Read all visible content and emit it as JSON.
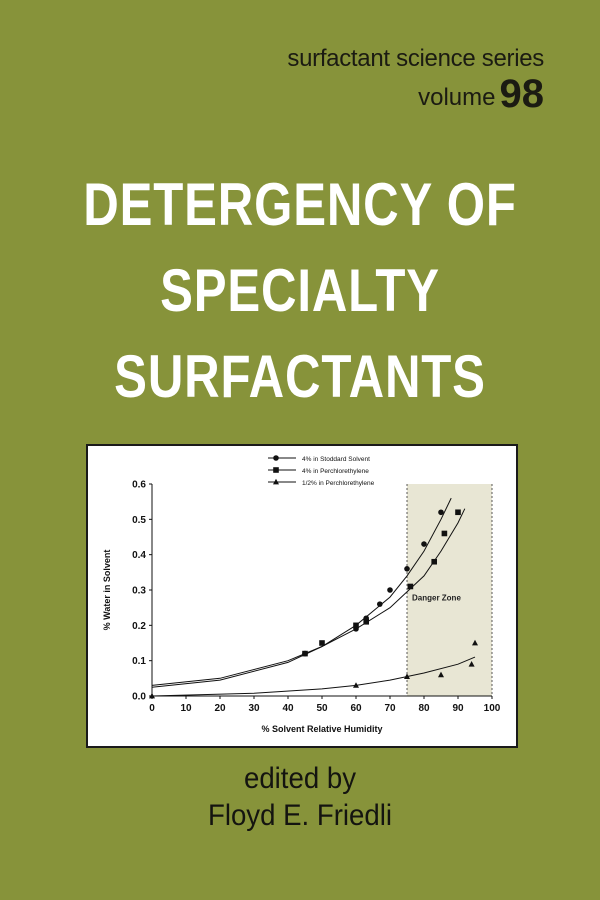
{
  "series": {
    "name": "surfactant science series",
    "volume_label": "volume",
    "volume_number": "98"
  },
  "title_lines": [
    "DETERGENCY OF",
    "SPECIALTY",
    "SURFACTANTS"
  ],
  "credits": {
    "edited_by": "edited by",
    "editor": "Floyd E. Friedli"
  },
  "colors": {
    "background": "#87933a",
    "title": "#ffffff",
    "danger_zone": "#e8e6d4"
  },
  "chart_data": {
    "type": "scatter",
    "xlabel": "% Solvent Relative Humidity",
    "ylabel": "% Water in Solvent",
    "xlim": [
      0,
      100
    ],
    "ylim": [
      0,
      0.6
    ],
    "x_ticks": [
      "0",
      "10",
      "20",
      "30",
      "40",
      "50",
      "60",
      "70",
      "80",
      "90",
      "100"
    ],
    "y_ticks": [
      "0.0",
      "0.1",
      "0.2",
      "0.3",
      "0.4",
      "0.5",
      "0.6"
    ],
    "annotation": {
      "text": "Danger Zone",
      "x_from": 75,
      "x_to": 100
    },
    "legend_position": "top",
    "series": [
      {
        "name": "4% in Stoddard Solvent",
        "marker": "circle",
        "points": [
          [
            45,
            0.12
          ],
          [
            60,
            0.19
          ],
          [
            63,
            0.22
          ],
          [
            67,
            0.26
          ],
          [
            70,
            0.3
          ],
          [
            75,
            0.36
          ],
          [
            80,
            0.43
          ],
          [
            85,
            0.52
          ]
        ],
        "fit": [
          [
            0,
            0.025
          ],
          [
            20,
            0.045
          ],
          [
            40,
            0.095
          ],
          [
            50,
            0.14
          ],
          [
            60,
            0.2
          ],
          [
            70,
            0.28
          ],
          [
            75,
            0.34
          ],
          [
            80,
            0.41
          ],
          [
            85,
            0.5
          ],
          [
            88,
            0.56
          ]
        ]
      },
      {
        "name": "4% in Perchlorethylene",
        "marker": "square",
        "points": [
          [
            45,
            0.12
          ],
          [
            50,
            0.15
          ],
          [
            60,
            0.2
          ],
          [
            63,
            0.21
          ],
          [
            76,
            0.31
          ],
          [
            83,
            0.38
          ],
          [
            86,
            0.46
          ],
          [
            90,
            0.52
          ]
        ],
        "fit": [
          [
            0,
            0.03
          ],
          [
            20,
            0.05
          ],
          [
            40,
            0.1
          ],
          [
            50,
            0.14
          ],
          [
            60,
            0.19
          ],
          [
            70,
            0.25
          ],
          [
            80,
            0.34
          ],
          [
            85,
            0.41
          ],
          [
            90,
            0.49
          ],
          [
            92,
            0.53
          ]
        ]
      },
      {
        "name": "1/2% in Perchlorethylene",
        "marker": "triangle",
        "points": [
          [
            0,
            0.0
          ],
          [
            60,
            0.03
          ],
          [
            75,
            0.055
          ],
          [
            85,
            0.06
          ],
          [
            94,
            0.09
          ],
          [
            95,
            0.15
          ]
        ],
        "fit": [
          [
            0,
            0.0
          ],
          [
            30,
            0.008
          ],
          [
            50,
            0.02
          ],
          [
            60,
            0.03
          ],
          [
            70,
            0.045
          ],
          [
            80,
            0.065
          ],
          [
            90,
            0.09
          ],
          [
            95,
            0.11
          ]
        ]
      }
    ]
  }
}
